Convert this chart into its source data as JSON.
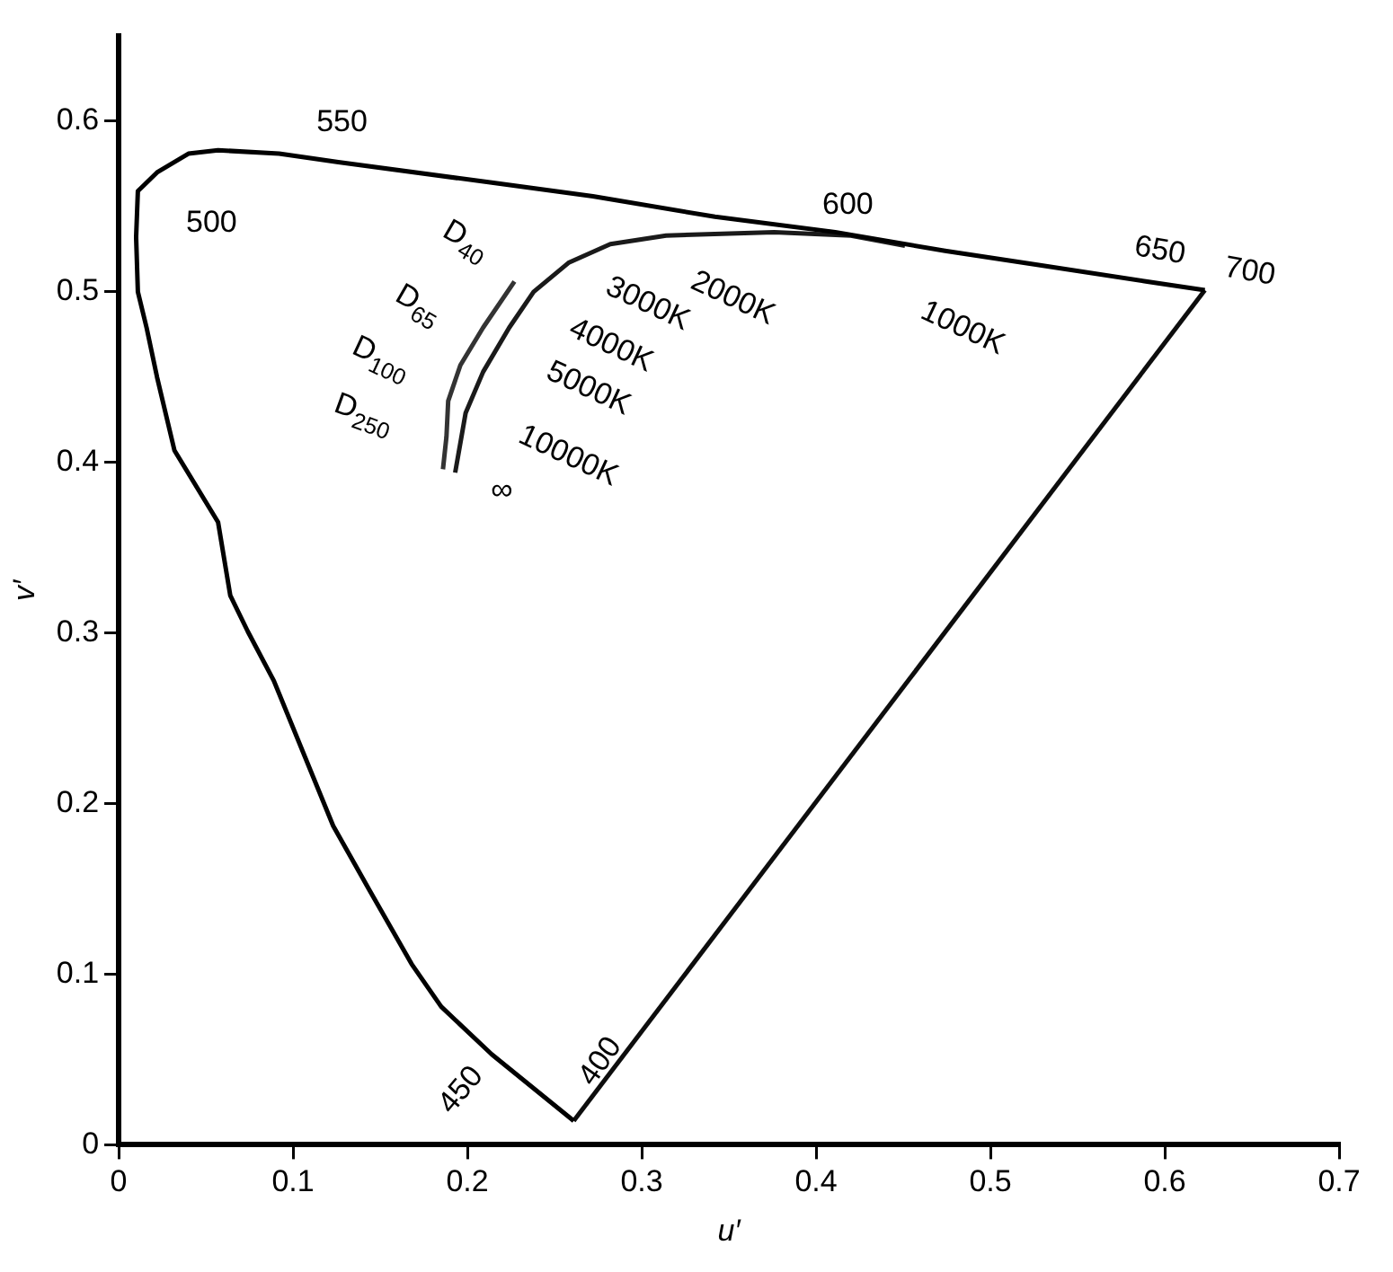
{
  "chart_data": {
    "type": "line",
    "xlabel": "u′",
    "ylabel": "v′",
    "xlim": [
      0,
      0.7
    ],
    "ylim": [
      0,
      0.65
    ],
    "xticks": [
      0,
      0.1,
      0.2,
      0.3,
      0.4,
      0.5,
      0.6,
      0.7
    ],
    "yticks": [
      0,
      0.1,
      0.2,
      0.3,
      0.4,
      0.5,
      0.6
    ],
    "grid": false,
    "legend": false,
    "marker": "none",
    "line_style": "solid",
    "series": [
      {
        "color": "#000000",
        "x": [
          0.261,
          0.214,
          0.185,
          0.168,
          0.144,
          0.123,
          0.089,
          0.074,
          0.064,
          0.057,
          0.032,
          0.022,
          0.016,
          0.011,
          0.01,
          0.011,
          0.022,
          0.04,
          0.057,
          0.092,
          0.126,
          0.214,
          0.272,
          0.342,
          0.411,
          0.474,
          0.526,
          0.59,
          0.623
        ],
        "values": [
          0.014,
          0.053,
          0.081,
          0.106,
          0.149,
          0.187,
          0.272,
          0.301,
          0.322,
          0.365,
          0.407,
          0.45,
          0.479,
          0.5,
          0.532,
          0.559,
          0.57,
          0.581,
          0.583,
          0.581,
          0.576,
          0.564,
          0.556,
          0.544,
          0.535,
          0.524,
          0.516,
          0.506,
          0.501
        ]
      },
      {
        "color": "#0d0d0d",
        "x": [
          0.623,
          0.261
        ],
        "values": [
          0.501,
          0.014
        ]
      },
      {
        "color": "#1a1a1a",
        "x": [
          0.193,
          0.199,
          0.209,
          0.224,
          0.238,
          0.258,
          0.282,
          0.314,
          0.376,
          0.42,
          0.451
        ],
        "values": [
          0.394,
          0.429,
          0.453,
          0.479,
          0.5,
          0.517,
          0.528,
          0.533,
          0.535,
          0.533,
          0.527
        ]
      },
      {
        "color": "#333333",
        "x": [
          0.186,
          0.188,
          0.189,
          0.196,
          0.209,
          0.227
        ],
        "values": [
          0.396,
          0.415,
          0.436,
          0.457,
          0.479,
          0.506
        ]
      }
    ],
    "annotations": [
      {
        "text": "550",
        "x": 0.126,
        "y": 0.576
      },
      {
        "text": "500",
        "x": 0.011,
        "y": 0.5
      },
      {
        "text": "600",
        "x": 0.411,
        "y": 0.535
      },
      {
        "text": "650",
        "x": 0.59,
        "y": 0.506
      },
      {
        "text": "700",
        "x": 0.623,
        "y": 0.501
      },
      {
        "text": "450",
        "x": 0.214,
        "y": 0.053
      },
      {
        "text": "400",
        "x": 0.261,
        "y": 0.014
      },
      {
        "text": "2000K",
        "x": 0.314,
        "y": 0.533
      },
      {
        "text": "3000K",
        "x": 0.258,
        "y": 0.517
      },
      {
        "text": "4000K",
        "x": 0.238,
        "y": 0.5
      },
      {
        "text": "5000K",
        "x": 0.224,
        "y": 0.479
      },
      {
        "text": "10000K",
        "x": 0.199,
        "y": 0.429
      },
      {
        "text": "∞",
        "x": 0.193,
        "y": 0.394
      },
      {
        "text": "1000K",
        "x": 0.451,
        "y": 0.527
      },
      {
        "text": "D$_{40}$",
        "x": 0.227,
        "y": 0.506
      },
      {
        "text": "D$_{65}$",
        "x": 0.209,
        "y": 0.479
      },
      {
        "text": "D$_{100}$",
        "x": 0.196,
        "y": 0.457
      },
      {
        "text": "D$_{250}$",
        "x": 0.188,
        "y": 0.415
      }
    ]
  }
}
